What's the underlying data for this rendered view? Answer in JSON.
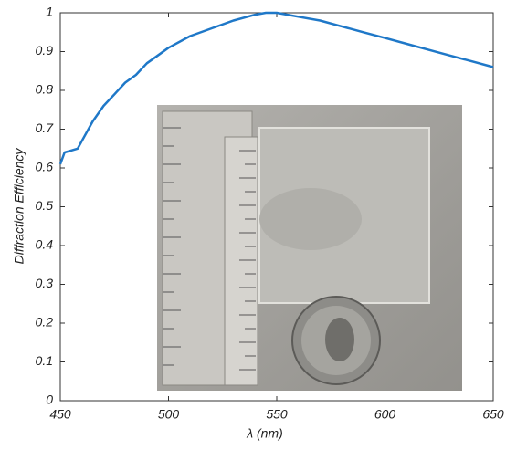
{
  "chart_data": {
    "type": "line",
    "xlabel": "λ (nm)",
    "ylabel": "Diffraction Efficiency",
    "x": [
      450,
      452,
      455,
      458,
      460,
      465,
      470,
      475,
      480,
      485,
      490,
      495,
      500,
      510,
      520,
      530,
      540,
      545,
      550,
      560,
      570,
      580,
      590,
      600,
      610,
      620,
      630,
      640,
      650
    ],
    "values": [
      0.61,
      0.64,
      0.645,
      0.65,
      0.67,
      0.72,
      0.76,
      0.79,
      0.82,
      0.84,
      0.87,
      0.89,
      0.91,
      0.94,
      0.96,
      0.98,
      0.995,
      1.0,
      1.0,
      0.99,
      0.98,
      0.965,
      0.95,
      0.935,
      0.92,
      0.905,
      0.89,
      0.875,
      0.86
    ],
    "color": "#1f78c8",
    "xlim": [
      450,
      650
    ],
    "xticks": [
      450,
      500,
      550,
      600,
      650
    ],
    "ylim": [
      0,
      1
    ],
    "yticks": [
      0,
      0.1,
      0.2,
      0.3,
      0.4,
      0.5,
      0.6,
      0.7,
      0.8,
      0.9,
      1
    ]
  }
}
